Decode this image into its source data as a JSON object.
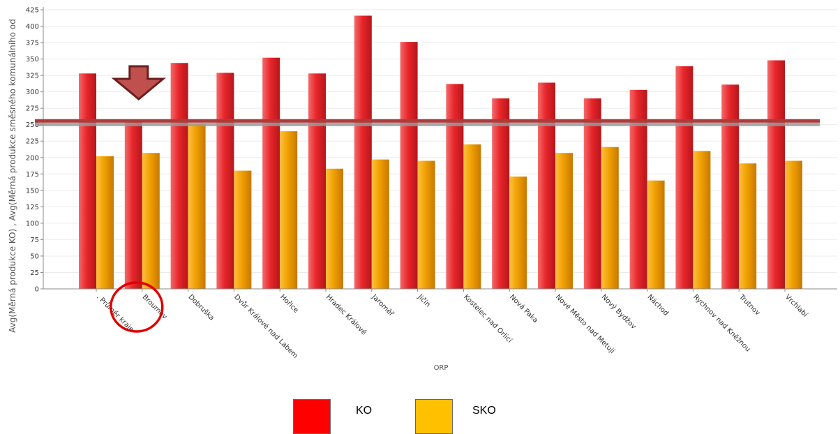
{
  "chart_data": {
    "type": "bar",
    "xlabel": "ORP",
    "ylabel": "Avg(Měrná produkce KO) , Avg(Měrná produkce směsného komunálního od",
    "ylim": [
      0,
      425
    ],
    "yticks": [
      0,
      25,
      50,
      75,
      100,
      125,
      150,
      175,
      200,
      225,
      250,
      275,
      300,
      325,
      350,
      375,
      400,
      425
    ],
    "grid": true,
    "categories": [
      ". Průměr kraje",
      "Broumov",
      "Dobruška",
      "Dvůr Králové nad Labem",
      "Hořice",
      "Hradec Králové",
      "Jaroměř",
      "Jičín",
      "Kostelec nad Orlicí",
      "Nová Paka",
      "Nové Město nad Metují",
      "Nový Bydžov",
      "Náchod",
      "Rychnov nad Kněžnou",
      "Trutnov",
      "Vrchlabí"
    ],
    "series": [
      {
        "name": "KO",
        "color": "#e8262b",
        "values": [
          328,
          258,
          344,
          329,
          352,
          328,
          416,
          376,
          312,
          290,
          314,
          290,
          303,
          339,
          311,
          348
        ]
      },
      {
        "name": "SKO",
        "color": "#f0a000",
        "values": [
          202,
          207,
          251,
          180,
          240,
          183,
          197,
          195,
          220,
          171,
          207,
          216,
          165,
          210,
          191,
          195
        ]
      }
    ],
    "reference_line": {
      "value": 251,
      "color": "#b03a3a"
    },
    "legend": {
      "placement": "bottom-center"
    },
    "annotations": {
      "arrow": {
        "category": "Broumov",
        "color": "#c0504d"
      },
      "circle": {
        "category": "Broumov",
        "color": "#e00000"
      }
    }
  },
  "legend": {
    "ko_label": "KO",
    "sko_label": "SKO",
    "ko_color": "#ff0000",
    "sko_color": "#ffc000"
  }
}
